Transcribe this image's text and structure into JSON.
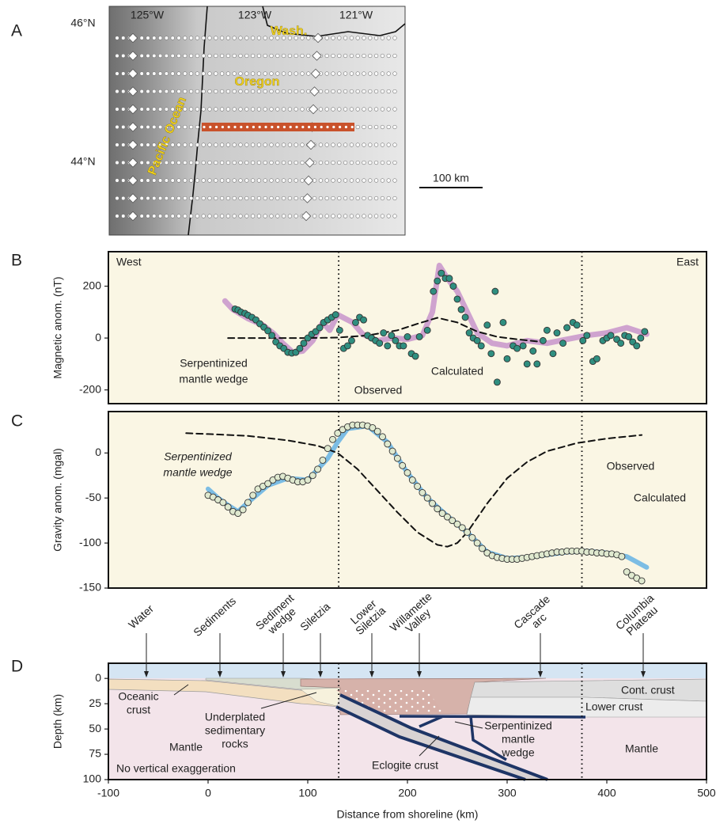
{
  "chart_data": [
    {
      "type": "map",
      "panel": "A",
      "lat_labels": [
        "46°N",
        "44°N"
      ],
      "lon_labels": [
        "125°W",
        "123°W",
        "121°W"
      ],
      "place_labels": [
        "Wash.",
        "Oregon",
        "Pacific Ocean"
      ],
      "scale_label": "100 km"
    },
    {
      "type": "profile",
      "panel": "B",
      "ylabel": "Magnetic anom. (nT)",
      "corner_labels": [
        "West",
        "East"
      ],
      "xlim": [
        -100,
        500
      ],
      "ylim": [
        -253,
        333
      ],
      "yticks": [
        -200,
        0,
        200
      ],
      "vlines": [
        131,
        375
      ],
      "series": [
        {
          "name": "Calculated",
          "style": "line",
          "color": "#cfa3cf",
          "width": 7,
          "x": [
            17,
            25,
            40,
            55,
            65,
            75,
            85,
            95,
            105,
            115,
            122,
            130,
            145,
            155,
            170,
            185,
            200,
            215,
            225,
            232,
            240,
            250,
            260,
            270,
            285,
            300,
            320,
            340,
            360,
            380,
            400,
            420,
            440
          ],
          "values": [
            143,
            110,
            75,
            50,
            20,
            -20,
            -55,
            -50,
            -10,
            60,
            30,
            90,
            60,
            15,
            -10,
            0,
            -5,
            10,
            100,
            280,
            230,
            180,
            100,
            20,
            -20,
            -30,
            -10,
            -20,
            -5,
            10,
            20,
            40,
            15
          ]
        },
        {
          "name": [
            "Serpentinized",
            "mantle wedge"
          ],
          "style": "dashed",
          "color": "#111111",
          "width": 2,
          "x": [
            20,
            60,
            100,
            130,
            160,
            190,
            210,
            230,
            250,
            270,
            290,
            310,
            335
          ],
          "values": [
            0,
            0,
            0,
            2,
            10,
            30,
            55,
            78,
            60,
            25,
            5,
            -5,
            -15
          ]
        },
        {
          "name": "Observed",
          "style": "scatter",
          "color": "#2f8f80",
          "width": 1,
          "x": [
            27,
            30,
            33,
            37,
            40,
            44,
            48,
            52,
            56,
            60,
            64,
            68,
            72,
            76,
            80,
            84,
            88,
            92,
            96,
            100,
            104,
            108,
            112,
            116,
            120,
            124,
            128,
            132,
            136,
            140,
            144,
            148,
            152,
            156,
            160,
            164,
            168,
            172,
            176,
            180,
            184,
            188,
            192,
            196,
            200,
            204,
            208,
            212,
            220,
            226,
            230,
            234,
            238,
            242,
            246,
            250,
            254,
            258,
            262,
            266,
            270,
            274,
            280,
            284,
            288,
            290,
            296,
            300,
            306,
            310,
            316,
            320,
            326,
            330,
            336,
            340,
            346,
            350,
            356,
            360,
            366,
            370,
            376,
            380,
            386,
            390,
            396,
            400,
            404,
            410,
            414,
            418,
            422,
            426,
            430,
            434,
            438
          ],
          "values": [
            112,
            108,
            100,
            95,
            88,
            80,
            70,
            55,
            42,
            28,
            10,
            -15,
            -30,
            -40,
            -55,
            -58,
            -55,
            -40,
            -20,
            0,
            15,
            25,
            40,
            60,
            70,
            80,
            90,
            30,
            -40,
            -30,
            -10,
            60,
            80,
            70,
            10,
            0,
            -10,
            -20,
            20,
            -30,
            10,
            -10,
            -30,
            -30,
            5,
            -60,
            -70,
            5,
            30,
            180,
            220,
            250,
            230,
            230,
            200,
            150,
            110,
            80,
            20,
            0,
            -10,
            -30,
            50,
            -60,
            180,
            -170,
            60,
            -80,
            -30,
            -40,
            -30,
            -100,
            -50,
            -100,
            -10,
            30,
            -60,
            20,
            -20,
            40,
            60,
            50,
            -10,
            10,
            -90,
            -80,
            -10,
            0,
            10,
            -5,
            -20,
            10,
            5,
            -15,
            -30,
            0,
            25
          ]
        }
      ]
    },
    {
      "type": "profile",
      "panel": "C",
      "ylabel": "Gravity anom. (mgal)",
      "xlim": [
        -100,
        500
      ],
      "ylim": [
        -150,
        46
      ],
      "yticks": [
        -150,
        -100,
        -50,
        0
      ],
      "vlines": [
        131,
        375
      ],
      "series": [
        {
          "name": "Calculated",
          "style": "line",
          "color": "#7cbde4",
          "width": 6,
          "x": [
            0,
            10,
            20,
            30,
            40,
            60,
            80,
            100,
            120,
            130,
            140,
            160,
            180,
            200,
            220,
            240,
            260,
            280,
            300,
            320,
            340,
            360,
            380,
            400,
            420,
            440
          ],
          "values": [
            -40,
            -50,
            -58,
            -65,
            -55,
            -36,
            -28,
            -30,
            -6,
            12,
            27,
            30,
            12,
            -22,
            -50,
            -70,
            -88,
            -110,
            -117,
            -116,
            -113,
            -110,
            -109,
            -111,
            -115,
            -127
          ]
        },
        {
          "name": [
            "Serpentinized",
            "mantle wedge"
          ],
          "style": "dashed",
          "color": "#111111",
          "width": 2,
          "x": [
            -22,
            0,
            40,
            80,
            110,
            130,
            150,
            170,
            190,
            210,
            230,
            240,
            250,
            260,
            280,
            300,
            320,
            340,
            370,
            400,
            435
          ],
          "values": [
            22,
            21,
            19,
            14,
            8,
            0,
            -18,
            -42,
            -66,
            -88,
            -102,
            -104,
            -100,
            -88,
            -56,
            -28,
            -10,
            2,
            11,
            16,
            20
          ]
        },
        {
          "name": "Observed",
          "style": "scatter",
          "color": "#dfe9cf",
          "width": 1,
          "x": [
            0,
            5,
            10,
            15,
            20,
            25,
            30,
            35,
            40,
            45,
            50,
            55,
            60,
            65,
            70,
            75,
            80,
            85,
            90,
            95,
            100,
            105,
            110,
            115,
            120,
            125,
            130,
            135,
            140,
            145,
            150,
            155,
            160,
            165,
            170,
            175,
            180,
            185,
            190,
            195,
            200,
            205,
            210,
            215,
            220,
            225,
            230,
            235,
            240,
            245,
            250,
            255,
            260,
            265,
            270,
            275,
            280,
            285,
            290,
            295,
            300,
            305,
            310,
            315,
            320,
            325,
            330,
            335,
            340,
            345,
            350,
            355,
            360,
            365,
            370,
            375,
            380,
            385,
            390,
            395,
            400,
            405,
            410,
            415,
            420,
            425,
            430,
            435
          ],
          "values": [
            -47,
            -49,
            -52,
            -55,
            -60,
            -65,
            -67,
            -63,
            -55,
            -47,
            -40,
            -37,
            -34,
            -30,
            -27,
            -26,
            -28,
            -30,
            -32,
            -32,
            -30,
            -25,
            -18,
            -8,
            5,
            15,
            22,
            26,
            29,
            31,
            31,
            31,
            30,
            28,
            24,
            18,
            10,
            2,
            -6,
            -14,
            -22,
            -30,
            -37,
            -44,
            -50,
            -56,
            -62,
            -67,
            -71,
            -75,
            -79,
            -83,
            -88,
            -94,
            -100,
            -106,
            -111,
            -114,
            -116,
            -117,
            -118,
            -118,
            -118,
            -117,
            -116,
            -115,
            -114,
            -113,
            -112,
            -111,
            -110,
            -110,
            -109,
            -109,
            -109,
            -109,
            -110,
            -110,
            -111,
            -111,
            -112,
            -112,
            -113,
            -115,
            -132,
            -136,
            -139,
            -142
          ]
        }
      ]
    },
    {
      "type": "section",
      "panel": "D",
      "xlabel": "Distance from shoreline (km)",
      "ylabel": "Depth (km)",
      "xlim": [
        -100,
        500
      ],
      "xticks": [
        -100,
        0,
        100,
        200,
        300,
        400,
        500
      ],
      "ylim": [
        100,
        -15
      ],
      "yticks": [
        0,
        25,
        50,
        75,
        100
      ],
      "vlines": [
        131,
        375
      ],
      "top_labels": [
        [
          "Water"
        ],
        [
          "Sediments"
        ],
        [
          "Sediment",
          "wedge"
        ],
        [
          "Siletzia"
        ],
        [
          "Lower",
          "Siletzia"
        ],
        [
          "Willamette",
          "Valley"
        ],
        [
          "Cascade",
          "arc"
        ],
        [
          "Columbia",
          "Plateau"
        ]
      ],
      "region_labels": [
        [
          "Oceanic",
          "crust"
        ],
        [
          "Mantle"
        ],
        [
          "Underplated",
          "sedimentary",
          "rocks"
        ],
        [
          "No vertical exaggeration"
        ],
        [
          "Eclogite crust"
        ],
        [
          "Serpentinized",
          "mantle",
          "wedge"
        ],
        [
          "Mantle"
        ],
        [
          "Cont. crust"
        ],
        [
          "Lower crust"
        ]
      ]
    }
  ]
}
